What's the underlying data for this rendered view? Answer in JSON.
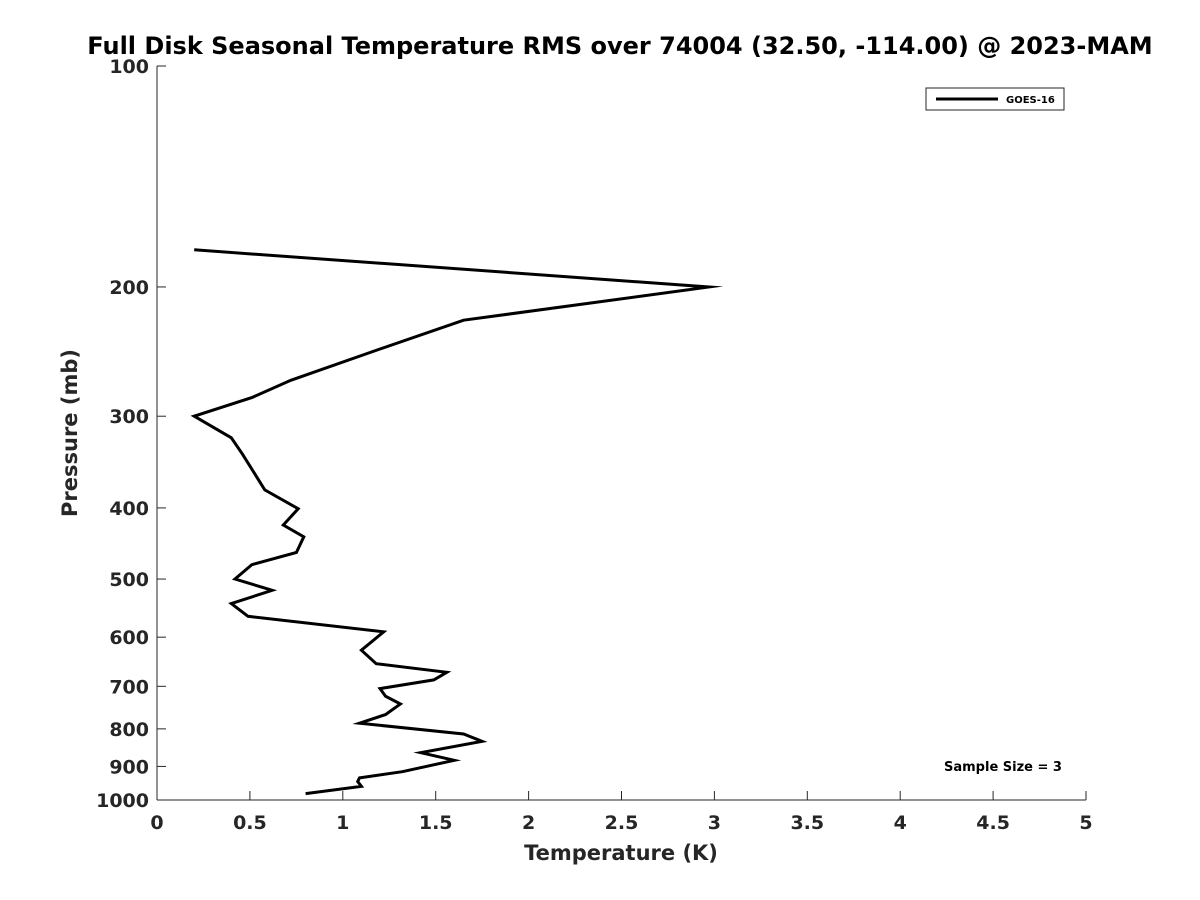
{
  "chart_data": {
    "type": "line",
    "title": "Full Disk Seasonal Temperature RMS over 74004 (32.50, -114.00) @ 2023-MAM",
    "xlabel": "Temperature (K)",
    "ylabel": "Pressure (mb)",
    "xlim": [
      0,
      5
    ],
    "ylim": [
      100,
      1000
    ],
    "y_scale": "log",
    "y_reversed": true,
    "grid": false,
    "x_ticks": [
      0,
      0.5,
      1,
      1.5,
      2,
      2.5,
      3,
      3.5,
      4,
      4.5,
      5
    ],
    "x_tick_labels": [
      "0",
      "0.5",
      "1",
      "1.5",
      "2",
      "2.5",
      "3",
      "3.5",
      "4",
      "4.5",
      "5"
    ],
    "y_ticks": [
      100,
      200,
      300,
      400,
      500,
      600,
      700,
      800,
      900,
      1000
    ],
    "y_tick_labels": [
      "100",
      "200",
      "300",
      "400",
      "500",
      "600",
      "700",
      "800",
      "900",
      "1000"
    ],
    "legend_position": "top-right",
    "annotation": "Sample Size = 3",
    "series": [
      {
        "name": "GOES-16",
        "color": "#000000",
        "points": [
          {
            "x": 0.2,
            "y": 178
          },
          {
            "x": 2.97,
            "y": 200
          },
          {
            "x": 1.65,
            "y": 222
          },
          {
            "x": 1.2,
            "y": 243
          },
          {
            "x": 0.72,
            "y": 268
          },
          {
            "x": 0.51,
            "y": 283
          },
          {
            "x": 0.2,
            "y": 300
          },
          {
            "x": 0.4,
            "y": 321
          },
          {
            "x": 0.46,
            "y": 338
          },
          {
            "x": 0.58,
            "y": 378
          },
          {
            "x": 0.76,
            "y": 401
          },
          {
            "x": 0.68,
            "y": 422
          },
          {
            "x": 0.79,
            "y": 438
          },
          {
            "x": 0.75,
            "y": 460
          },
          {
            "x": 0.51,
            "y": 478
          },
          {
            "x": 0.42,
            "y": 500
          },
          {
            "x": 0.62,
            "y": 518
          },
          {
            "x": 0.4,
            "y": 540
          },
          {
            "x": 0.49,
            "y": 562
          },
          {
            "x": 1.22,
            "y": 590
          },
          {
            "x": 1.1,
            "y": 625
          },
          {
            "x": 1.18,
            "y": 652
          },
          {
            "x": 1.56,
            "y": 670
          },
          {
            "x": 1.49,
            "y": 686
          },
          {
            "x": 1.2,
            "y": 705
          },
          {
            "x": 1.23,
            "y": 722
          },
          {
            "x": 1.31,
            "y": 740
          },
          {
            "x": 1.23,
            "y": 765
          },
          {
            "x": 1.09,
            "y": 786
          },
          {
            "x": 1.65,
            "y": 813
          },
          {
            "x": 1.75,
            "y": 832
          },
          {
            "x": 1.42,
            "y": 862
          },
          {
            "x": 1.6,
            "y": 883
          },
          {
            "x": 1.32,
            "y": 915
          },
          {
            "x": 1.09,
            "y": 933
          },
          {
            "x": 1.08,
            "y": 944
          },
          {
            "x": 1.1,
            "y": 958
          },
          {
            "x": 0.8,
            "y": 980
          }
        ]
      }
    ]
  }
}
